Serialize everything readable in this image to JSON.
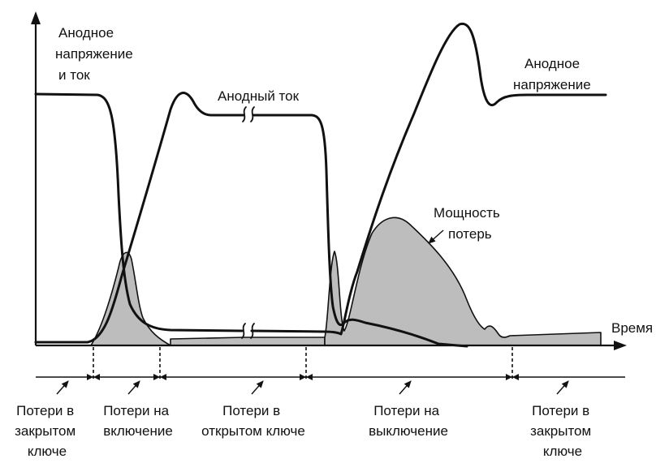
{
  "labels": {
    "y_axis_line1": "Анодное",
    "y_axis_line2": "напряжение",
    "y_axis_line3": "и ток",
    "anode_current": "Анодный ток",
    "anode_voltage_line1": "Анодное",
    "anode_voltage_line2": "напряжение",
    "power_loss_line1": "Мощность",
    "power_loss_line2": "потерь",
    "time_axis": "Время"
  },
  "phases": [
    {
      "id": "off-state-1",
      "lines": [
        "Потери в",
        "закрытом",
        "ключе"
      ]
    },
    {
      "id": "turn-on",
      "lines": [
        "Потери на",
        "включение"
      ]
    },
    {
      "id": "on-state",
      "lines": [
        "Потери в",
        "открытом ключе"
      ]
    },
    {
      "id": "turn-off",
      "lines": [
        "Потери на",
        "выключение"
      ]
    },
    {
      "id": "off-state-2",
      "lines": [
        "Потери в",
        "закрытом",
        "ключе"
      ]
    }
  ],
  "colors": {
    "ink": "#111111",
    "loss_fill": "#bdbdbd",
    "background": "#ffffff"
  }
}
